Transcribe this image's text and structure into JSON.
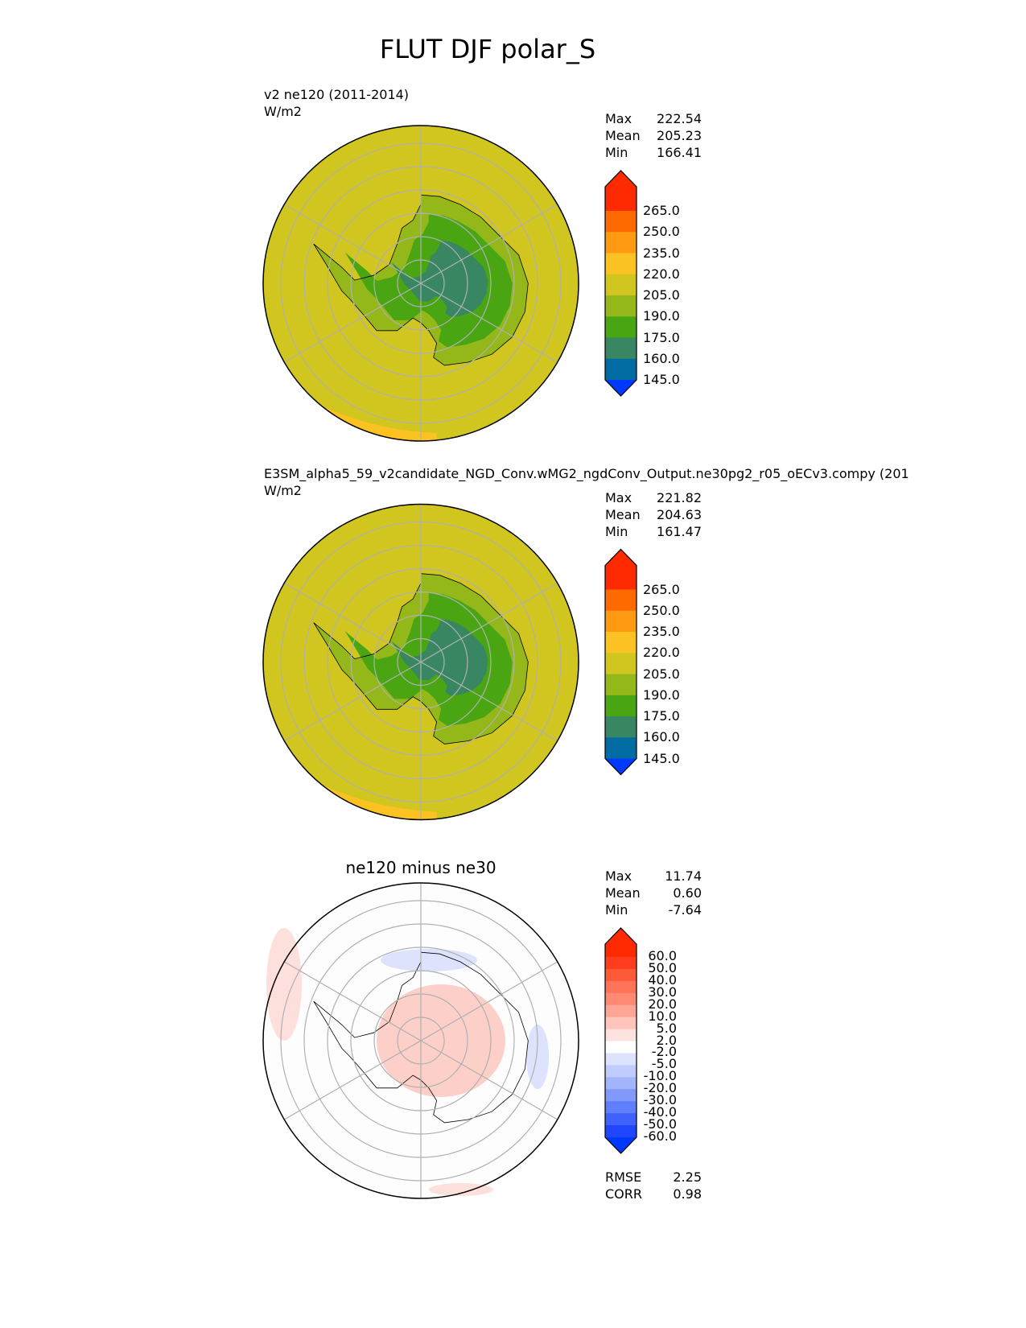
{
  "chart_data": {
    "type": "heatmap",
    "title": "FLUT DJF polar_S",
    "panels": [
      {
        "name": "test",
        "title": "v2 ne120 (2011-2014)",
        "units": "W/m2",
        "stats": {
          "labels": [
            "Max",
            "Mean",
            "Min"
          ],
          "values": [
            "222.54",
            "205.23",
            "166.41"
          ]
        },
        "colorbar": {
          "levels": [
            "265.0",
            "250.0",
            "235.0",
            "220.0",
            "205.0",
            "190.0",
            "175.0",
            "160.0",
            "145.0"
          ],
          "colors": [
            "#ff2a00",
            "#ff6a00",
            "#ff9a12",
            "#fbc222",
            "#d1c61f",
            "#94b81a",
            "#4aa512",
            "#388762",
            "#006ca2",
            "#0038ff"
          ]
        },
        "fill": "#d1c61f"
      },
      {
        "name": "reference",
        "title": "E3SM_alpha5_59_v2candidate_NGD_Conv.wMG2_ngdConv_Output.ne30pg2_r05_oECv3.compy (201",
        "units": "W/m2",
        "stats": {
          "labels": [
            "Max",
            "Mean",
            "Min"
          ],
          "values": [
            "221.82",
            "204.63",
            "161.47"
          ]
        },
        "colorbar": {
          "levels": [
            "265.0",
            "250.0",
            "235.0",
            "220.0",
            "205.0",
            "190.0",
            "175.0",
            "160.0",
            "145.0"
          ],
          "colors": [
            "#ff2a00",
            "#ff6a00",
            "#ff9a12",
            "#fbc222",
            "#d1c61f",
            "#94b81a",
            "#4aa512",
            "#388762",
            "#006ca2",
            "#0038ff"
          ]
        },
        "fill": "#d1c61f"
      },
      {
        "name": "difference",
        "title": "ne120 minus ne30",
        "stats": {
          "labels": [
            "Max",
            "Mean",
            "Min"
          ],
          "values": [
            "11.74",
            "0.60",
            "-7.64"
          ]
        },
        "colorbar": {
          "levels": [
            "60.0",
            "50.0",
            "40.0",
            "30.0",
            "20.0",
            "10.0",
            "5.0",
            "2.0",
            "-2.0",
            "-5.0",
            "-10.0",
            "-20.0",
            "-30.0",
            "-40.0",
            "-50.0",
            "-60.0"
          ],
          "colors": [
            "#ff2a00",
            "#ff3d1c",
            "#ff5a38",
            "#ff7358",
            "#ff8a74",
            "#ffa596",
            "#ffc4ba",
            "#fde3df",
            "#ffffff",
            "#dde3fc",
            "#c0ccfb",
            "#a2b4fb",
            "#8099fb",
            "#607ffc",
            "#3f62fd",
            "#2046fe",
            "#0038ff"
          ]
        },
        "fill": "#fdfdfd",
        "metrics": {
          "labels": [
            "RMSE",
            "CORR"
          ],
          "values": [
            "2.25",
            "0.98"
          ]
        }
      }
    ]
  }
}
